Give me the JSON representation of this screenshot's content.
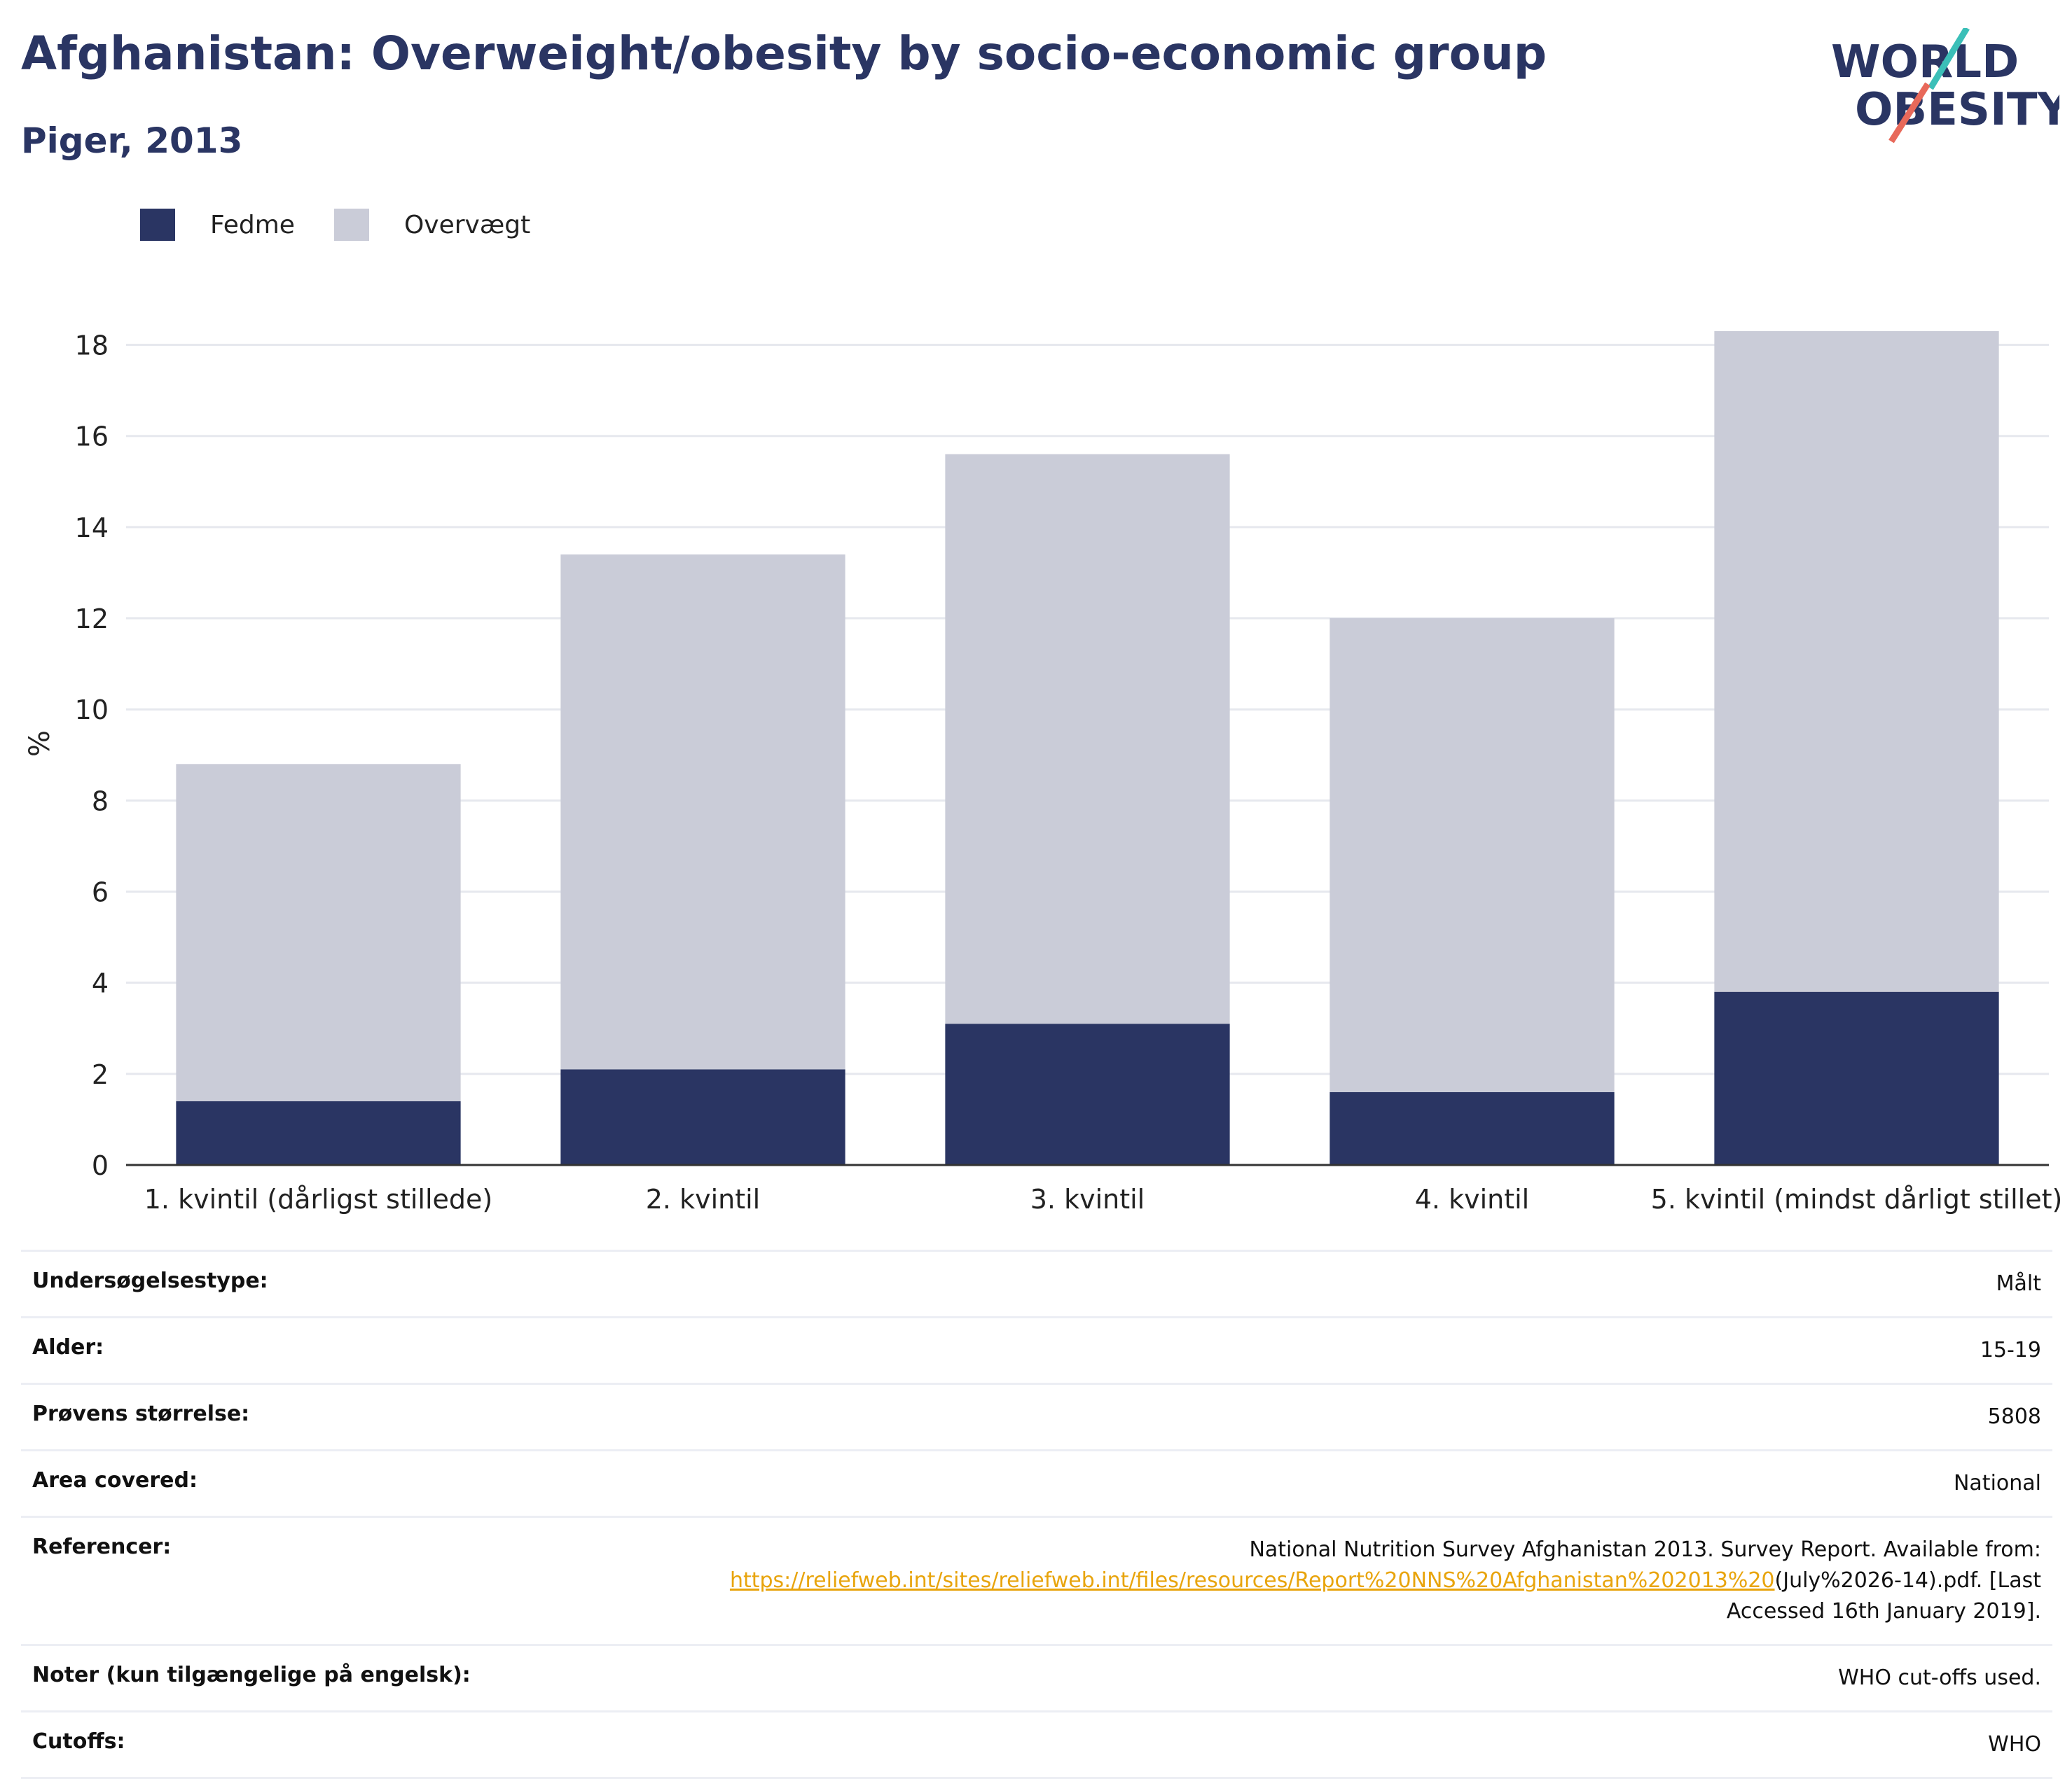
{
  "title": "Afghanistan: Overweight/obesity by socio-economic group",
  "subtitle": "Piger, 2013",
  "logo": {
    "line1": "WORLD",
    "line2": "OBESITY",
    "accent_teal": "#3bbfb8",
    "accent_coral": "#e8695a"
  },
  "legend": [
    {
      "label": "Fedme",
      "color": "#2a3563"
    },
    {
      "label": "Overvægt",
      "color": "#caccd8"
    }
  ],
  "chart_data": {
    "type": "bar",
    "stacked": true,
    "categories": [
      "1. kvintil (dårligst stillede)",
      "2. kvintil",
      "3. kvintil",
      "4. kvintil",
      "5. kvintil (mindst dårligt stillet)"
    ],
    "series": [
      {
        "name": "Fedme",
        "color": "#2a3563",
        "values": [
          1.4,
          2.1,
          3.1,
          1.6,
          3.8
        ]
      },
      {
        "name": "Overvægt",
        "color": "#caccd8",
        "values": [
          7.4,
          11.3,
          12.5,
          10.4,
          14.5
        ]
      }
    ],
    "ylabel": "%",
    "ylim": [
      0,
      18.5
    ],
    "yticks": [
      0,
      2,
      4,
      6,
      8,
      10,
      12,
      14,
      16,
      18
    ],
    "grid": true,
    "legend_position": "top-left"
  },
  "meta": {
    "survey_type": {
      "label": "Undersøgelsestype:",
      "value": "Målt"
    },
    "age": {
      "label": "Alder:",
      "value": "15-19"
    },
    "sample_size": {
      "label": "Prøvens størrelse:",
      "value": "5808"
    },
    "area": {
      "label": "Area covered:",
      "value": "National"
    },
    "references": {
      "label": "Referencer:",
      "text_before": "National Nutrition Survey Afghanistan 2013. Survey Report. Available from:",
      "link": "https://reliefweb.int/sites/reliefweb.int/files/resources/Report%20NNS%20Afghanistan%202013%20",
      "text_after": "(July%2026-14).pdf. [Last Accessed 16th January 2019]."
    },
    "notes": {
      "label": "Noter (kun tilgængelige på engelsk):",
      "value": "WHO cut-offs used."
    },
    "cutoffs": {
      "label": "Cutoffs:",
      "value": "WHO"
    }
  }
}
